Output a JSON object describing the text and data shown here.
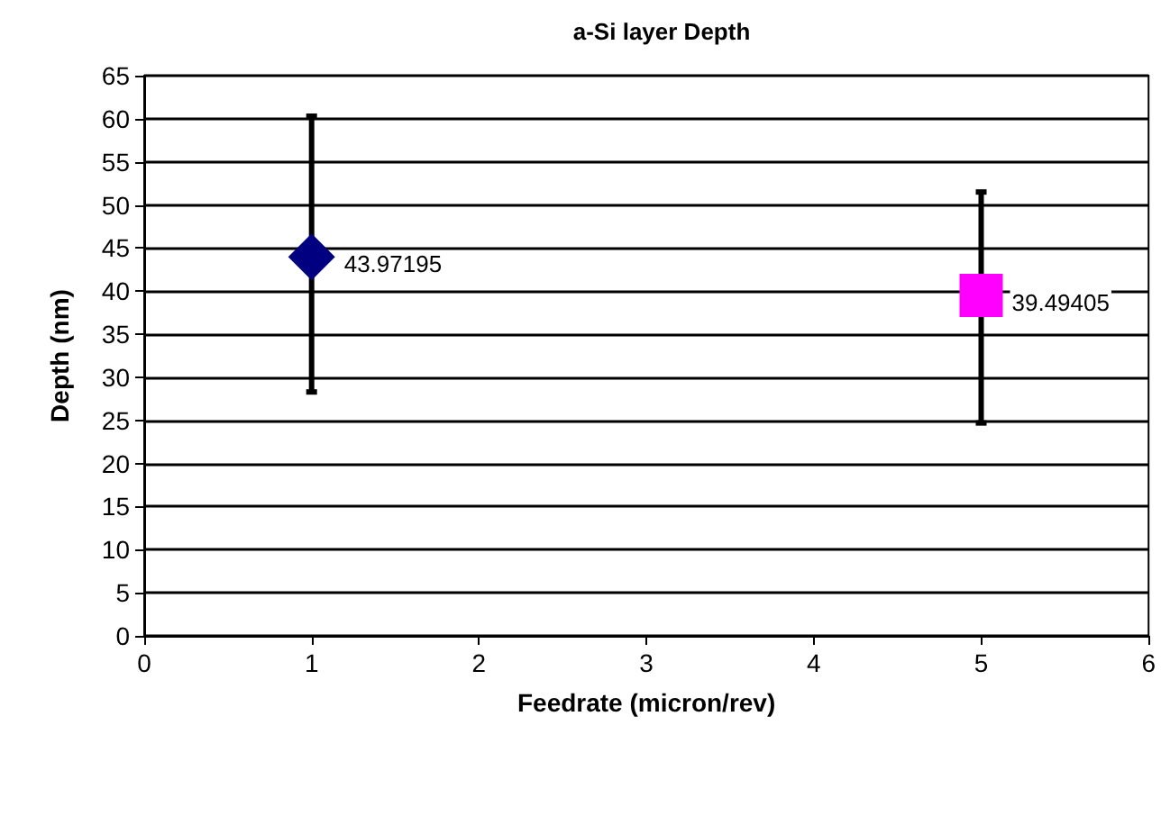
{
  "chart_data": {
    "type": "scatter",
    "title": "a-Si layer Depth",
    "xlabel": "Feedrate (micron/rev)",
    "ylabel": "Depth (nm)",
    "xlim": [
      0,
      6
    ],
    "xticks": [
      0,
      1,
      2,
      3,
      4,
      5,
      6
    ],
    "ylim": [
      0,
      65
    ],
    "yticks": [
      0,
      5,
      10,
      15,
      20,
      25,
      30,
      35,
      40,
      45,
      50,
      55,
      60,
      65
    ],
    "grid": "y",
    "series": [
      {
        "color": "#000080",
        "marker": "diamond",
        "x": [
          1
        ],
        "values": [
          43.97195
        ],
        "errors": [
          [
            28.3,
            60.3
          ]
        ],
        "value_labels": [
          "43.97195"
        ]
      },
      {
        "color": "#ff00ff",
        "marker": "square",
        "x": [
          5
        ],
        "values": [
          39.49405
        ],
        "errors": [
          [
            24.7,
            51.5
          ]
        ],
        "value_labels": [
          "39.49405"
        ]
      }
    ]
  }
}
